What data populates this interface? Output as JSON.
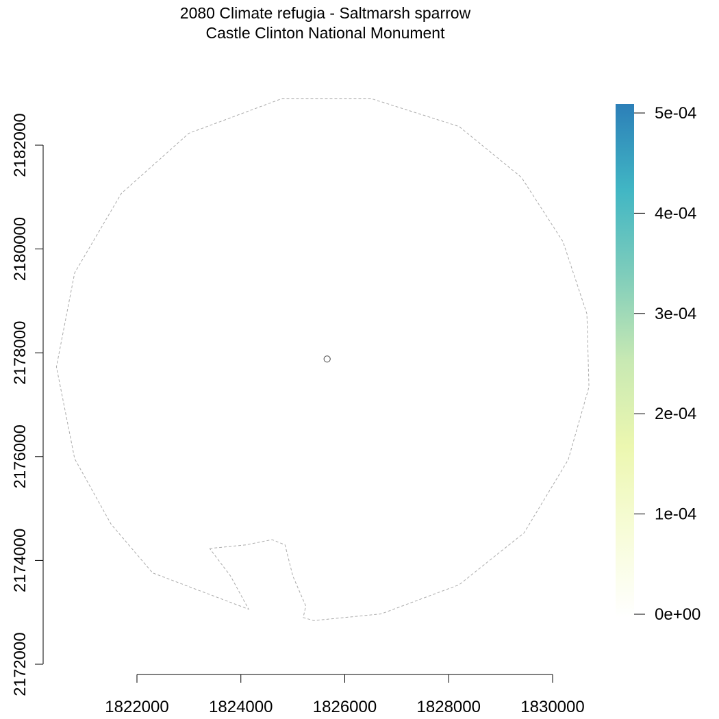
{
  "title": {
    "line1": "2080 Climate refugia - Saltmarsh sparrow",
    "line2": "Castle Clinton National Monument"
  },
  "chart_data": {
    "type": "raster-map",
    "xlim": [
      1821000,
      1831000
    ],
    "ylim": [
      2172000,
      2183000
    ],
    "x_ticks": [
      1822000,
      1824000,
      1826000,
      1828000,
      1830000
    ],
    "x_tick_labels": [
      "1822000",
      "1824000",
      "1826000",
      "1828000",
      "1830000"
    ],
    "y_ticks": [
      2172000,
      2174000,
      2176000,
      2178000,
      2180000,
      2182000
    ],
    "y_tick_labels": [
      "2172000",
      "2174000",
      "2176000",
      "2178000",
      "2180000",
      "2182000"
    ],
    "boundary_buffer": {
      "style": "dashed",
      "color": "#aaaaaa",
      "points": [
        [
          1823400,
          2174230
        ],
        [
          1824100,
          2174300
        ],
        [
          1824600,
          2174400
        ],
        [
          1824850,
          2174300
        ],
        [
          1825000,
          2173700
        ],
        [
          1825250,
          2173120
        ],
        [
          1825200,
          2172900
        ],
        [
          1825400,
          2172840
        ],
        [
          1826700,
          2172970
        ],
        [
          1828200,
          2173530
        ],
        [
          1829450,
          2174530
        ],
        [
          1830300,
          2175940
        ],
        [
          1830700,
          2177340
        ],
        [
          1830660,
          2178750
        ],
        [
          1830200,
          2180140
        ],
        [
          1829400,
          2181380
        ],
        [
          1828200,
          2182360
        ],
        [
          1826500,
          2182900
        ],
        [
          1824800,
          2182900
        ],
        [
          1823000,
          2182230
        ],
        [
          1821700,
          2181070
        ],
        [
          1820800,
          2179540
        ],
        [
          1820450,
          2177730
        ],
        [
          1820800,
          2175960
        ],
        [
          1821500,
          2174700
        ],
        [
          1822300,
          2173760
        ],
        [
          1824150,
          2173060
        ],
        [
          1823800,
          2173700
        ],
        [
          1823400,
          2174230
        ]
      ]
    },
    "park_boundary": {
      "center": [
        1825660,
        2177880
      ],
      "radius": 60
    },
    "legend": {
      "placement": "right",
      "min": 0,
      "max": 0.0005,
      "ticks": [
        0,
        0.0001,
        0.0002,
        0.0003,
        0.0004,
        0.0005
      ],
      "tick_labels": [
        "0e+00",
        "1e-04",
        "2e-04",
        "3e-04",
        "4e-04",
        "5e-04"
      ],
      "colors": [
        "#ffffff",
        "#f7fcd8",
        "#ecf7b0",
        "#c8e9b3",
        "#7fcdbb",
        "#41b6c4",
        "#2c7fb8"
      ]
    }
  }
}
